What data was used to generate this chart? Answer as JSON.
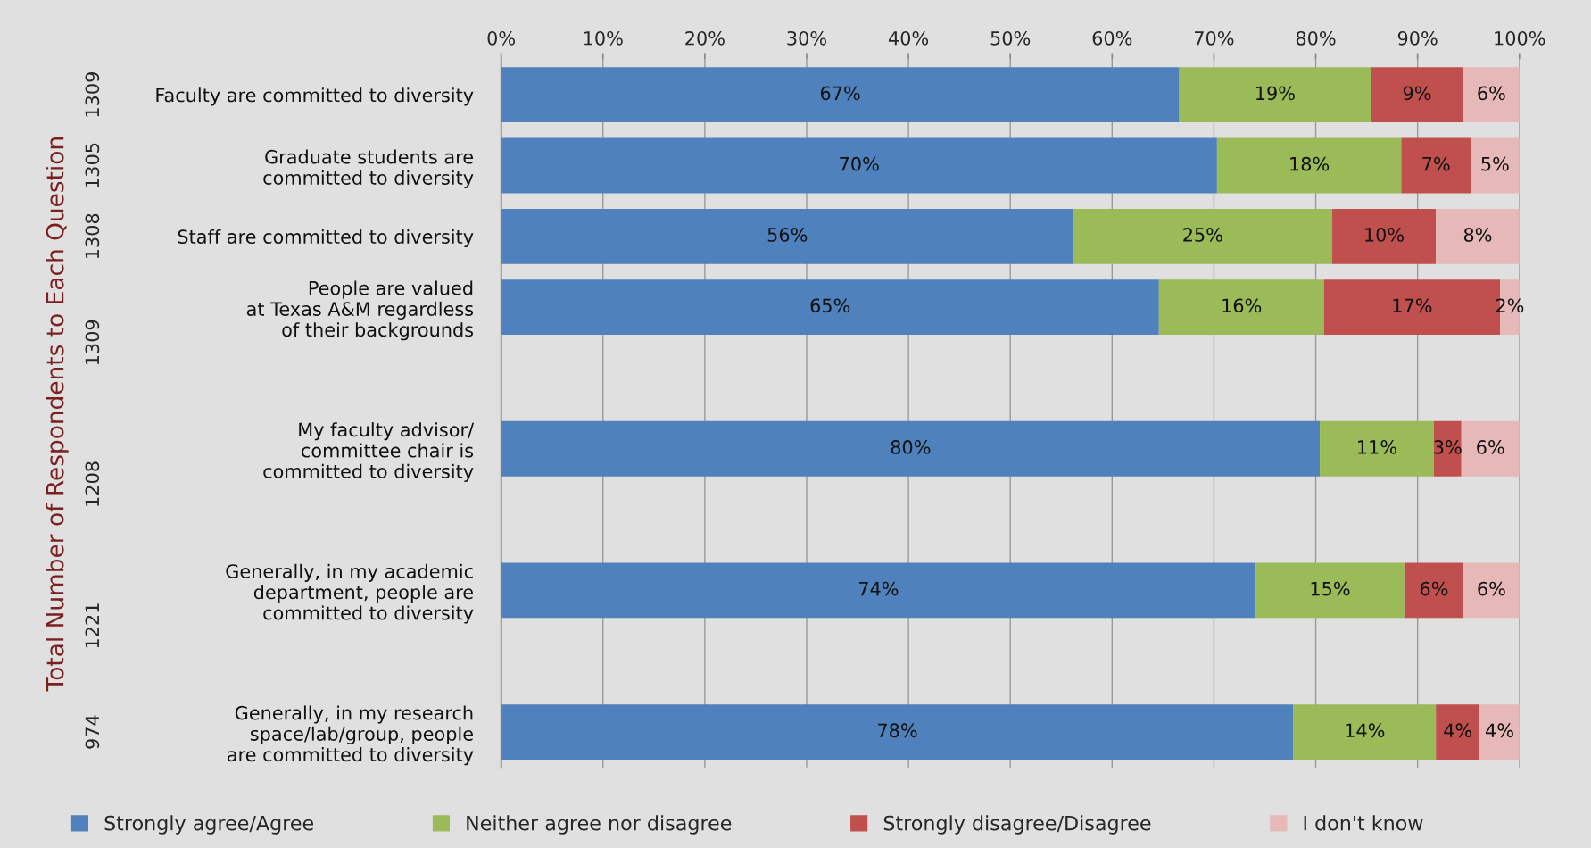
{
  "chart_data": {
    "type": "bar",
    "orientation": "horizontal",
    "stacked": true,
    "ylabel": "Total Number of Respondents to Each Question",
    "categories": [
      "Faculty are committed to diversity",
      "Graduate students are\ncommitted to diversity",
      "Staff are committed to diversity",
      "People are valued\nat Texas A&M regardless\nof their backgrounds",
      null,
      "My faculty advisor/\ncommittee chair is\ncommitted to diversity",
      null,
      "Generally, in my academic\ndepartment, people are\ncommitted to diversity",
      null,
      "Generally, in my research\nspace/lab/group, people\nare committed to diversity"
    ],
    "annotations": [
      "1309",
      "1305",
      "1308",
      "1309",
      "1208",
      "1221",
      "974"
    ],
    "series": [
      {
        "name": "Strongly agree/Agree",
        "color": "#4f81bd",
        "values": [
          66.6,
          70.3,
          56.2,
          64.6,
          null,
          80.4,
          null,
          74.1,
          null,
          77.8
        ],
        "value_labels": [
          "67%",
          "70%",
          "56%",
          "65%",
          null,
          "80%",
          null,
          "74%",
          null,
          "78%"
        ]
      },
      {
        "name": "Neither agree nor disagree",
        "color": "#9bbb59",
        "values": [
          18.8,
          18.1,
          25.4,
          16.2,
          null,
          11.2,
          null,
          14.6,
          null,
          14.0
        ],
        "value_labels": [
          "19%",
          "18%",
          "25%",
          "16%",
          null,
          "11%",
          null,
          "15%",
          null,
          "14%"
        ]
      },
      {
        "name": "Strongly disagree/Disagree",
        "color": "#c0504d",
        "values": [
          9.1,
          6.8,
          10.2,
          17.3,
          null,
          2.7,
          null,
          5.8,
          null,
          4.3
        ],
        "value_labels": [
          "9%",
          "7%",
          "10%",
          "17%",
          null,
          "3%",
          null,
          "6%",
          null,
          "4%"
        ]
      },
      {
        "name": "I don't know",
        "color": "#e6b9b8",
        "values": [
          5.5,
          4.8,
          8.2,
          1.9,
          null,
          5.7,
          null,
          5.5,
          null,
          3.9
        ],
        "value_labels": [
          "6%",
          "5%",
          "8%",
          "2%",
          null,
          "6%",
          null,
          "6%",
          null,
          "4%"
        ]
      }
    ],
    "xlim": [
      0,
      100
    ],
    "xticks": [
      {
        "value": 0,
        "label": "0%"
      },
      {
        "value": 10,
        "label": "10%"
      },
      {
        "value": 20,
        "label": "20%"
      },
      {
        "value": 30,
        "label": "30%"
      },
      {
        "value": 40,
        "label": "40%"
      },
      {
        "value": 50,
        "label": "50%"
      },
      {
        "value": 60,
        "label": "60%"
      },
      {
        "value": 70,
        "label": "70%"
      },
      {
        "value": 80,
        "label": "80%"
      },
      {
        "value": 90,
        "label": "90%"
      },
      {
        "value": 100,
        "label": "100%"
      }
    ],
    "grid": "x",
    "legend": "bottom"
  }
}
